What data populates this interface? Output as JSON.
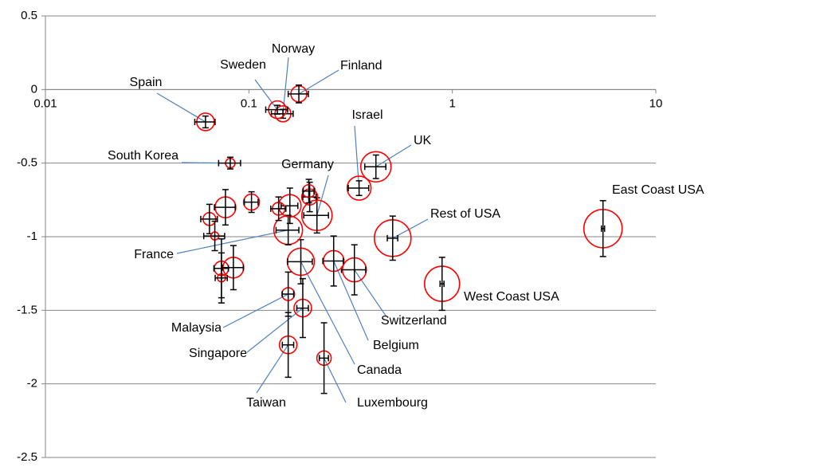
{
  "chart_data": {
    "type": "scatter",
    "xscale": "log",
    "xlim": [
      0.01,
      10
    ],
    "ylim": [
      -2.5,
      0.5
    ],
    "xticks": [
      0.01,
      0.1,
      1,
      10
    ],
    "yticks": [
      -2.5,
      -2,
      -1.5,
      -1,
      -0.5,
      0,
      0.5
    ],
    "grid": true,
    "color": "#ff0000",
    "errorbar_color": "#000000",
    "point_labels": [
      "Finland",
      "Norway",
      "Sweden",
      "Spain",
      "South Korea",
      "Israel",
      "UK",
      "Germany",
      "East Coast USA",
      "Rest of USA",
      "West Coast USA",
      "Switzerland",
      "Belgium",
      "Canada",
      "France",
      "Malaysia",
      "Singapore",
      "Taiwan",
      "Luxembourg",
      null,
      null,
      null,
      null,
      null,
      null,
      null,
      null,
      null,
      null,
      null
    ],
    "x": [
      0.176,
      0.147,
      0.138,
      0.0612,
      0.081,
      0.348,
      0.421,
      0.216,
      5.5,
      0.509,
      0.89,
      0.33,
      0.261,
      0.18,
      0.156,
      0.156,
      0.184,
      0.156,
      0.234,
      0.199,
      0.197,
      0.159,
      0.14,
      0.103,
      0.0767,
      0.064,
      0.068,
      0.0733,
      0.0839,
      0.0733
    ],
    "y": [
      -0.03,
      -0.165,
      -0.137,
      -0.22,
      -0.5,
      -0.67,
      -0.525,
      -0.855,
      -0.945,
      -1.01,
      -1.32,
      -1.225,
      -1.165,
      -1.17,
      -0.955,
      -1.39,
      -1.485,
      -1.735,
      -1.825,
      -0.73,
      -0.69,
      -0.79,
      -0.81,
      -0.765,
      -0.8,
      -0.88,
      -0.995,
      -1.215,
      -1.21,
      -1.28
    ],
    "sizes": [
      10,
      10,
      11,
      11,
      6,
      15,
      19,
      19,
      24,
      23,
      22,
      15,
      13,
      17,
      18,
      8,
      11,
      11,
      9,
      10,
      8,
      14,
      8,
      10,
      13,
      8,
      5,
      9,
      13,
      5
    ],
    "xerr": [
      0.02,
      0.018,
      0.017,
      0.007,
      0.01,
      0.04,
      0.05,
      0.03,
      0.1,
      0.03,
      0.02,
      0.045,
      0.03,
      0.025,
      0.02,
      0.01,
      0.012,
      0.01,
      0.012,
      0.015,
      0.012,
      0.015,
      0.012,
      0.008,
      0.009,
      0.006,
      0.008,
      0.006,
      0.01,
      0.005
    ],
    "yerr": [
      0.06,
      0.03,
      0.03,
      0.04,
      0.04,
      0.05,
      0.08,
      0.12,
      0.19,
      0.15,
      0.18,
      0.17,
      0.17,
      0.15,
      0.1,
      0.15,
      0.2,
      0.22,
      0.24,
      0.1,
      0.08,
      0.12,
      0.08,
      0.07,
      0.12,
      0.1,
      0.1,
      0.2,
      0.15,
      0.17
    ]
  }
}
